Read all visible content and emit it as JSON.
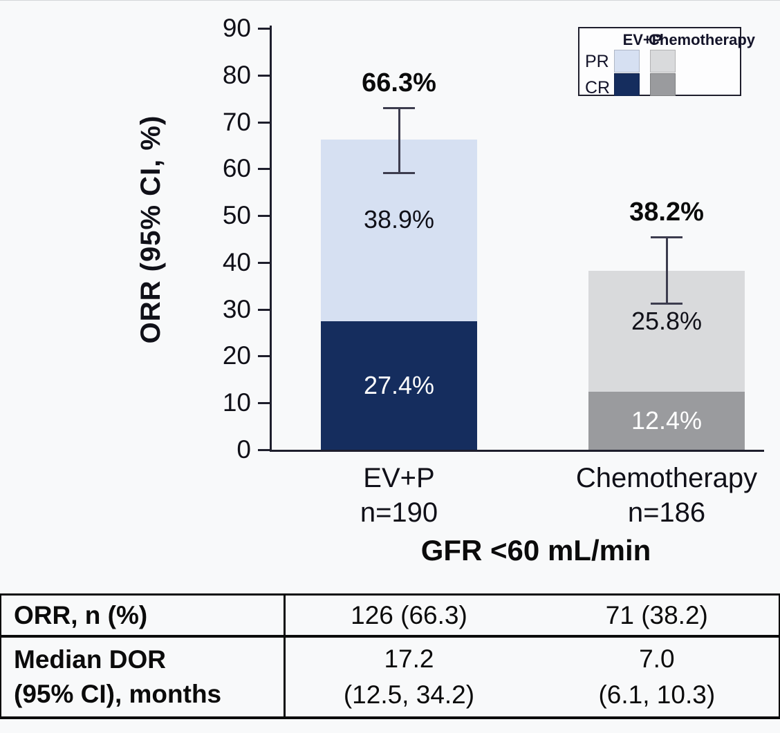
{
  "colors": {
    "background": "#f8f9fa",
    "axis": "#1e1e2c",
    "error_bar": "#3c3c4e",
    "text": "#101018",
    "table_border": "#0b0b0b",
    "evp_pr": "#d6e0f2",
    "evp_cr": "#152d5e",
    "chemo_pr": "#d9dadc",
    "chemo_cr": "#9a9b9e"
  },
  "chart_data": {
    "type": "bar",
    "subtype": "stacked-bar-with-error-bars",
    "title": "",
    "ylabel": "ORR (95% CI, %)",
    "xlabel": "GFR <60 mL/min",
    "ylim": [
      0,
      90
    ],
    "yticks": [
      0,
      10,
      20,
      30,
      40,
      50,
      60,
      70,
      80,
      90
    ],
    "grid": false,
    "legend_position": "top-right",
    "stack_order_bottom_to_top": [
      "CR",
      "PR"
    ],
    "groups": [
      {
        "name": "EV+P",
        "n_label": "n=190",
        "segments": {
          "CR": 27.4,
          "PR": 38.9
        },
        "segment_labels": {
          "CR": "27.4%",
          "PR": "38.9%"
        },
        "total": 66.3,
        "total_label": "66.3%",
        "ci": [
          59.0,
          73.0
        ],
        "colors": {
          "PR": "#d6e0f2",
          "CR": "#152d5e"
        },
        "label_colors": {
          "PR": "#101018",
          "CR": "#ffffff"
        }
      },
      {
        "name": "Chemotherapy",
        "n_label": "n=186",
        "segments": {
          "CR": 12.4,
          "PR": 25.8
        },
        "segment_labels": {
          "CR": "12.4%",
          "PR": "25.8%"
        },
        "total": 38.2,
        "total_label": "38.2%",
        "ci": [
          31.2,
          45.5
        ],
        "colors": {
          "PR": "#d9dadc",
          "CR": "#9a9b9e"
        },
        "label_colors": {
          "PR": "#101018",
          "CR": "#ffffff"
        }
      }
    ],
    "legend": {
      "columns": [
        "EV+P",
        "Chemotherapy"
      ],
      "rows": [
        "PR",
        "CR"
      ]
    }
  },
  "table": {
    "rows": [
      {
        "label_lines": [
          "ORR, n (%)"
        ],
        "evp": [
          "126 (66.3)"
        ],
        "chemo": [
          "71 (38.2)"
        ]
      },
      {
        "label_lines": [
          "Median DOR",
          "(95% CI), months"
        ],
        "evp": [
          "17.2",
          "(12.5, 34.2)"
        ],
        "chemo": [
          "7.0",
          "(6.1, 10.3)"
        ]
      }
    ]
  }
}
